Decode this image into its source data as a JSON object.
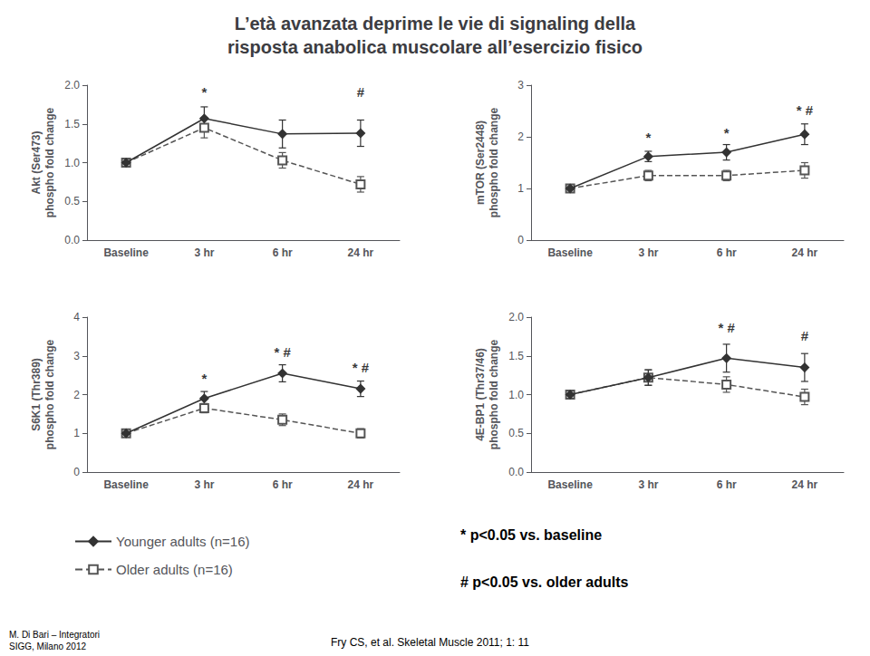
{
  "title": "L’età avanzata deprime le vie di signaling della\nrisposta anabolica muscolare all’esercizio fisico",
  "legend": "lower left",
  "annotations": [
    {
      "text": "* p<0.05 vs. baseline"
    },
    {
      "text": "# p<0.05 vs. older adults"
    },
    {
      "text": "M. Di Bari – Integratori\nSIGG, Milano 2012"
    },
    {
      "text": "Fry CS, et al. Skeletal Muscle 2011; 1: 11"
    }
  ],
  "chart_data": [
    {
      "type": "line",
      "ylabel": "Akt (Ser473)\nphospho fold change",
      "categories": [
        "Baseline",
        "3 hr",
        "6 hr",
        "24 hr"
      ],
      "ylim": [
        0,
        2
      ],
      "yticks": [
        {
          "value": 0,
          "label": "0.0"
        },
        {
          "value": 0.5,
          "label": "0.5"
        },
        {
          "value": 1,
          "label": "1.0"
        },
        {
          "value": 1.5,
          "label": "1.5"
        },
        {
          "value": 2,
          "label": "2.0"
        }
      ],
      "grid": false,
      "series": [
        {
          "name": "Younger adults (n=16)",
          "color": "#333333",
          "marker": "diamond",
          "line_style": "solid",
          "values": [
            1.0,
            1.57,
            1.37,
            1.38
          ],
          "errors": [
            0.05,
            0.15,
            0.18,
            0.17
          ]
        },
        {
          "name": "Older adults (n=16)",
          "color": "#555555",
          "marker": "square",
          "line_style": "dashed",
          "values": [
            1.0,
            1.45,
            1.03,
            0.72
          ],
          "errors": [
            0.05,
            0.13,
            0.1,
            0.1
          ]
        }
      ],
      "annotations": [
        {
          "x": "3 hr",
          "y": 1.8,
          "text": "*"
        },
        {
          "x": "24 hr",
          "y": 1.8,
          "text": "#"
        }
      ]
    },
    {
      "type": "line",
      "ylabel": "mTOR (Ser2448)\nphospho fold change",
      "categories": [
        "Baseline",
        "3 hr",
        "6 hr",
        "24 hr"
      ],
      "ylim": [
        0,
        3
      ],
      "yticks": [
        0,
        1,
        2,
        3
      ],
      "grid": false,
      "series": [
        {
          "name": "Younger adults (n=16)",
          "color": "#333333",
          "marker": "diamond",
          "line_style": "solid",
          "values": [
            1.0,
            1.62,
            1.7,
            2.05
          ],
          "errors": [
            0.05,
            0.1,
            0.15,
            0.2
          ]
        },
        {
          "name": "Older adults (n=16)",
          "color": "#555555",
          "marker": "square",
          "line_style": "dashed",
          "values": [
            1.0,
            1.25,
            1.25,
            1.35
          ],
          "errors": [
            0.05,
            0.1,
            0.1,
            0.15
          ]
        }
      ],
      "annotations": [
        {
          "x": "3 hr",
          "y": 1.82,
          "text": "*"
        },
        {
          "x": "6 hr",
          "y": 1.92,
          "text": "*"
        },
        {
          "x": "24 hr",
          "y": 2.35,
          "text": "* #"
        }
      ]
    },
    {
      "type": "line",
      "ylabel": "S6K1 (Thr389)\nphospho fold change",
      "categories": [
        "Baseline",
        "3 hr",
        "6 hr",
        "24 hr"
      ],
      "ylim": [
        0,
        4
      ],
      "yticks": [
        0,
        1,
        2,
        3,
        4
      ],
      "grid": false,
      "series": [
        {
          "name": "Younger adults (n=16)",
          "color": "#333333",
          "marker": "diamond",
          "line_style": "solid",
          "values": [
            1.0,
            1.9,
            2.55,
            2.15
          ],
          "errors": [
            0.05,
            0.18,
            0.22,
            0.2
          ]
        },
        {
          "name": "Older adults (n=16)",
          "color": "#555555",
          "marker": "square",
          "line_style": "dashed",
          "values": [
            1.0,
            1.65,
            1.35,
            1.0
          ],
          "errors": [
            0.05,
            0.12,
            0.15,
            0.12
          ]
        }
      ],
      "annotations": [
        {
          "x": "3 hr",
          "y": 2.2,
          "text": "*"
        },
        {
          "x": "6 hr",
          "y": 2.88,
          "text": "* #"
        },
        {
          "x": "24 hr",
          "y": 2.48,
          "text": "* #"
        }
      ]
    },
    {
      "type": "line",
      "ylabel": "4E-BP1 (Thr37/46)\nphospho fold change",
      "categories": [
        "Baseline",
        "3 hr",
        "6 hr",
        "24 hr"
      ],
      "ylim": [
        0,
        2
      ],
      "yticks": [
        {
          "value": 0,
          "label": "0.0"
        },
        {
          "value": 0.5,
          "label": "0.5"
        },
        {
          "value": 1,
          "label": "1.0"
        },
        {
          "value": 1.5,
          "label": "1.5"
        },
        {
          "value": 2,
          "label": "2.0"
        }
      ],
      "grid": false,
      "series": [
        {
          "name": "Younger adults (n=16)",
          "color": "#333333",
          "marker": "diamond",
          "line_style": "solid",
          "values": [
            1.0,
            1.22,
            1.47,
            1.35
          ],
          "errors": [
            0.05,
            0.1,
            0.18,
            0.18
          ]
        },
        {
          "name": "Older adults (n=16)",
          "color": "#555555",
          "marker": "square",
          "line_style": "dashed",
          "values": [
            1.0,
            1.22,
            1.13,
            0.97
          ],
          "errors": [
            0.05,
            0.1,
            0.1,
            0.1
          ]
        }
      ],
      "annotations": [
        {
          "x": "6 hr",
          "y": 1.75,
          "text": "* #"
        },
        {
          "x": "24 hr",
          "y": 1.65,
          "text": "#"
        }
      ]
    }
  ]
}
